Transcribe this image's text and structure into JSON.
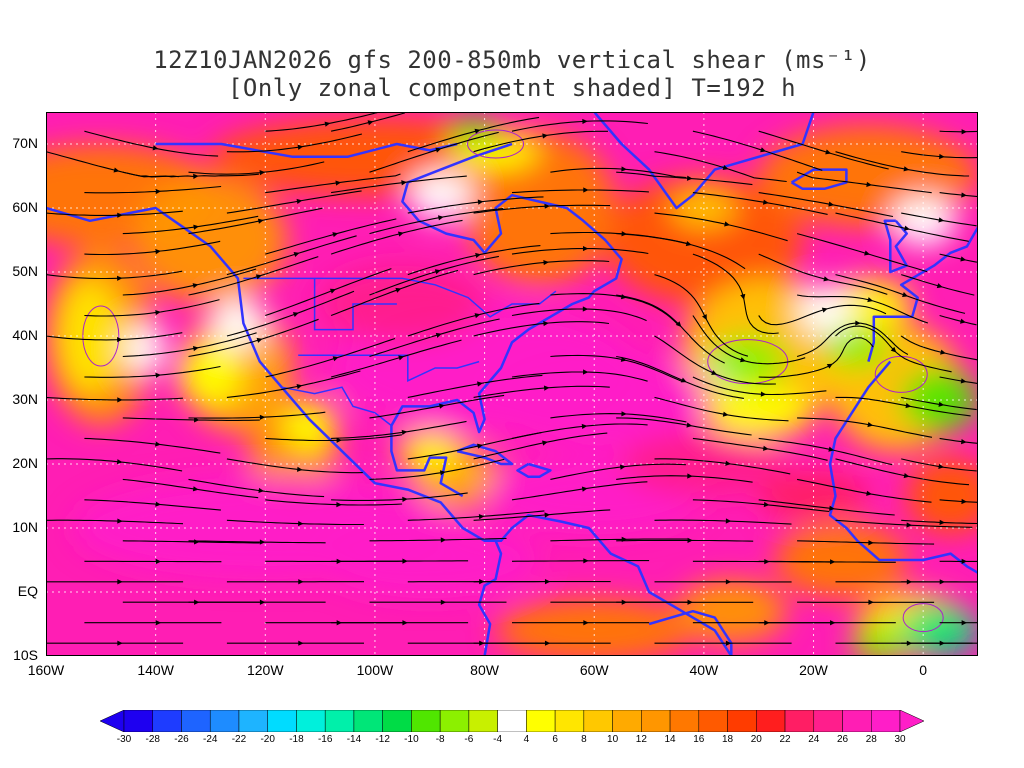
{
  "title": {
    "line1": "12Z10JAN2026 gfs 200-850mb vertical shear (ms⁻¹)",
    "line2": "[Only zonal componetnt shaded] T=192 h"
  },
  "map": {
    "lat_labels": [
      "70N",
      "60N",
      "50N",
      "40N",
      "30N",
      "20N",
      "10N",
      "EQ",
      "10S"
    ],
    "lat_values": [
      70,
      60,
      50,
      40,
      30,
      20,
      10,
      0,
      -10
    ],
    "lon_labels": [
      "160W",
      "140W",
      "120W",
      "100W",
      "80W",
      "60W",
      "40W",
      "20W",
      "0"
    ],
    "lon_values": [
      -160,
      -140,
      -120,
      -100,
      -80,
      -60,
      -40,
      -20,
      0
    ],
    "lon_range": [
      -160,
      10
    ],
    "lat_range": [
      -10,
      75
    ],
    "coastline_color": "#3333ff",
    "contour_color": "#aa22cc",
    "streamline_color": "#000000"
  },
  "colorbar": {
    "labels": [
      "-30",
      "-28",
      "-26",
      "-24",
      "-22",
      "-20",
      "-18",
      "-16",
      "-14",
      "-12",
      "-10",
      "-8",
      "-6",
      "-4",
      "4",
      "6",
      "8",
      "10",
      "12",
      "14",
      "16",
      "18",
      "20",
      "22",
      "24",
      "26",
      "28",
      "30"
    ],
    "colors": [
      "#1e00f0",
      "#1e3cff",
      "#1e64ff",
      "#1e8cff",
      "#1eb4ff",
      "#00dcff",
      "#00f0dc",
      "#00f0aa",
      "#00e678",
      "#00dc46",
      "#50e600",
      "#8cf000",
      "#c8f000",
      "#ffffff",
      "#ffff00",
      "#ffe600",
      "#ffc800",
      "#ffaa00",
      "#ff9600",
      "#ff7800",
      "#ff5a00",
      "#ff3c00",
      "#ff1e1e",
      "#ff1e64",
      "#ff1e8c",
      "#ff1eb4",
      "#ff1ec8"
    ]
  }
}
